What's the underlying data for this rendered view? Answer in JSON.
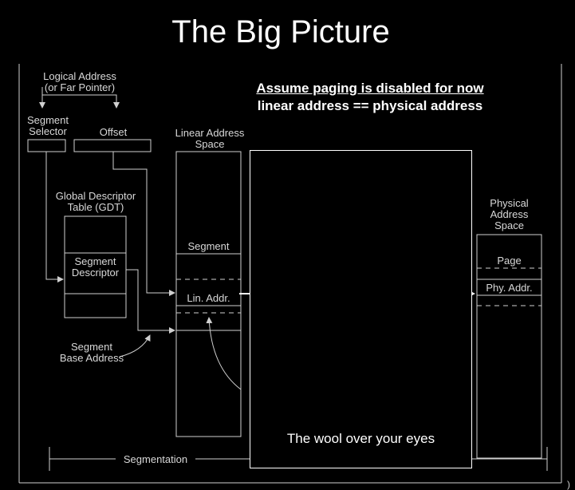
{
  "title": "The Big Picture",
  "notes": {
    "paging_disabled": "Assume paging is disabled for now",
    "equivalence": "linear address == physical address"
  },
  "labels": {
    "logical_address": "Logical Address",
    "far_pointer": "(or Far Pointer)",
    "segment_selector_line1": "Segment",
    "segment_selector_line2": "Selector",
    "offset": "Offset",
    "linear_space_line1": "Linear Address",
    "linear_space_line2": "Space",
    "gdt_line1": "Global Descriptor",
    "gdt_line2": "Table (GDT)",
    "segment_descriptor_line1": "Segment",
    "segment_descriptor_line2": "Descriptor",
    "segment": "Segment",
    "lin_addr": "Lin. Addr.",
    "segment_base_line1": "Segment",
    "segment_base_line2": "Base Address",
    "physical_space_line1": "Physical",
    "physical_space_line2": "Address",
    "physical_space_line3": "Space",
    "page": "Page",
    "phy_addr": "Phy. Addr.",
    "segmentation": "Segmentation",
    "edge_mark": ")"
  },
  "overlay": {
    "caption": "The wool over your eyes"
  },
  "colors": {
    "background": "#000000",
    "lines": "#d0d0d0",
    "text": "#ffffff"
  }
}
